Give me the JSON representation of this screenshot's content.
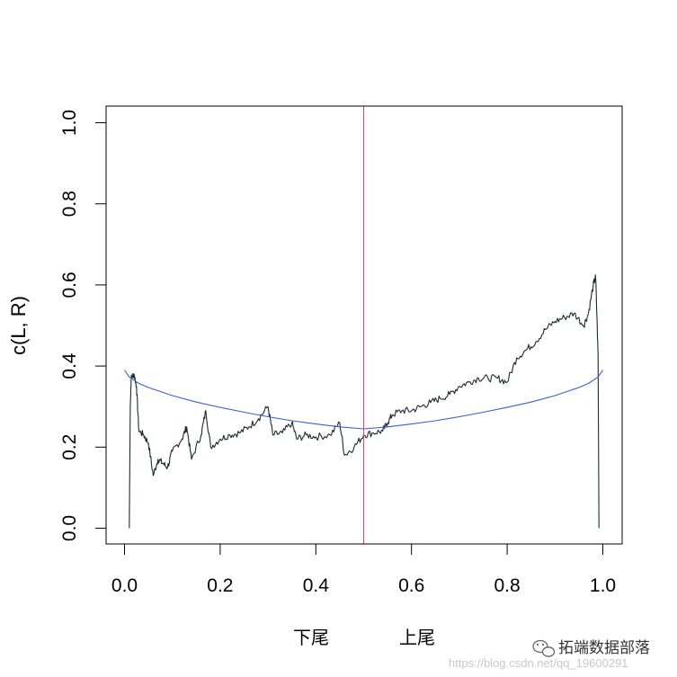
{
  "chart_data": {
    "type": "line",
    "title": "",
    "ylabel": "c(L, R)",
    "xlabels": [
      "下尾",
      "上尾"
    ],
    "xlim": [
      0,
      1
    ],
    "ylim": [
      0,
      1
    ],
    "x_ticks": [
      "0.0",
      "0.2",
      "0.4",
      "0.6",
      "0.8",
      "1.0"
    ],
    "y_ticks": [
      "0.0",
      "0.2",
      "0.4",
      "0.6",
      "0.8",
      "1.0"
    ],
    "grid": false,
    "legend": "none",
    "vline": {
      "x": 0.5,
      "color": "#d0506a"
    },
    "series": [
      {
        "color": "#1a2a33",
        "style": "empirical-step",
        "points": [
          [
            0.01,
            0.0
          ],
          [
            0.012,
            0.3
          ],
          [
            0.014,
            0.37
          ],
          [
            0.02,
            0.38
          ],
          [
            0.025,
            0.35
          ],
          [
            0.03,
            0.24
          ],
          [
            0.04,
            0.23
          ],
          [
            0.05,
            0.21
          ],
          [
            0.06,
            0.13
          ],
          [
            0.07,
            0.17
          ],
          [
            0.08,
            0.16
          ],
          [
            0.09,
            0.15
          ],
          [
            0.1,
            0.19
          ],
          [
            0.12,
            0.22
          ],
          [
            0.13,
            0.25
          ],
          [
            0.14,
            0.17
          ],
          [
            0.16,
            0.23
          ],
          [
            0.17,
            0.29
          ],
          [
            0.18,
            0.2
          ],
          [
            0.2,
            0.22
          ],
          [
            0.22,
            0.23
          ],
          [
            0.24,
            0.235
          ],
          [
            0.26,
            0.25
          ],
          [
            0.28,
            0.27
          ],
          [
            0.3,
            0.3
          ],
          [
            0.31,
            0.23
          ],
          [
            0.33,
            0.235
          ],
          [
            0.35,
            0.26
          ],
          [
            0.36,
            0.22
          ],
          [
            0.38,
            0.23
          ],
          [
            0.4,
            0.225
          ],
          [
            0.43,
            0.23
          ],
          [
            0.45,
            0.26
          ],
          [
            0.46,
            0.18
          ],
          [
            0.48,
            0.2
          ],
          [
            0.5,
            0.23
          ],
          [
            0.52,
            0.235
          ],
          [
            0.54,
            0.24
          ],
          [
            0.55,
            0.26
          ],
          [
            0.56,
            0.28
          ],
          [
            0.58,
            0.29
          ],
          [
            0.6,
            0.29
          ],
          [
            0.62,
            0.3
          ],
          [
            0.64,
            0.31
          ],
          [
            0.66,
            0.32
          ],
          [
            0.68,
            0.33
          ],
          [
            0.7,
            0.35
          ],
          [
            0.72,
            0.36
          ],
          [
            0.74,
            0.37
          ],
          [
            0.76,
            0.37
          ],
          [
            0.78,
            0.37
          ],
          [
            0.8,
            0.36
          ],
          [
            0.82,
            0.42
          ],
          [
            0.84,
            0.44
          ],
          [
            0.86,
            0.46
          ],
          [
            0.88,
            0.49
          ],
          [
            0.9,
            0.51
          ],
          [
            0.92,
            0.52
          ],
          [
            0.94,
            0.53
          ],
          [
            0.96,
            0.5
          ],
          [
            0.97,
            0.53
          ],
          [
            0.98,
            0.6
          ],
          [
            0.985,
            0.62
          ],
          [
            0.99,
            0.43
          ],
          [
            0.992,
            0.0
          ]
        ]
      },
      {
        "color": "#3a5fcd",
        "style": "smooth",
        "points": [
          [
            0.0,
            0.39
          ],
          [
            0.01,
            0.373
          ],
          [
            0.03,
            0.357
          ],
          [
            0.05,
            0.347
          ],
          [
            0.1,
            0.327
          ],
          [
            0.15,
            0.311
          ],
          [
            0.2,
            0.298
          ],
          [
            0.25,
            0.286
          ],
          [
            0.3,
            0.275
          ],
          [
            0.35,
            0.265
          ],
          [
            0.4,
            0.257
          ],
          [
            0.45,
            0.25
          ],
          [
            0.5,
            0.245
          ],
          [
            0.55,
            0.25
          ],
          [
            0.6,
            0.257
          ],
          [
            0.65,
            0.265
          ],
          [
            0.7,
            0.275
          ],
          [
            0.75,
            0.286
          ],
          [
            0.8,
            0.298
          ],
          [
            0.85,
            0.311
          ],
          [
            0.9,
            0.327
          ],
          [
            0.95,
            0.347
          ],
          [
            0.97,
            0.357
          ],
          [
            0.99,
            0.373
          ],
          [
            1.0,
            0.39
          ]
        ]
      }
    ]
  },
  "watermark": {
    "name": "拓端数据部落",
    "url": "https://blog.csdn.net/qq_19600291",
    "icon": "wechat-icon"
  }
}
